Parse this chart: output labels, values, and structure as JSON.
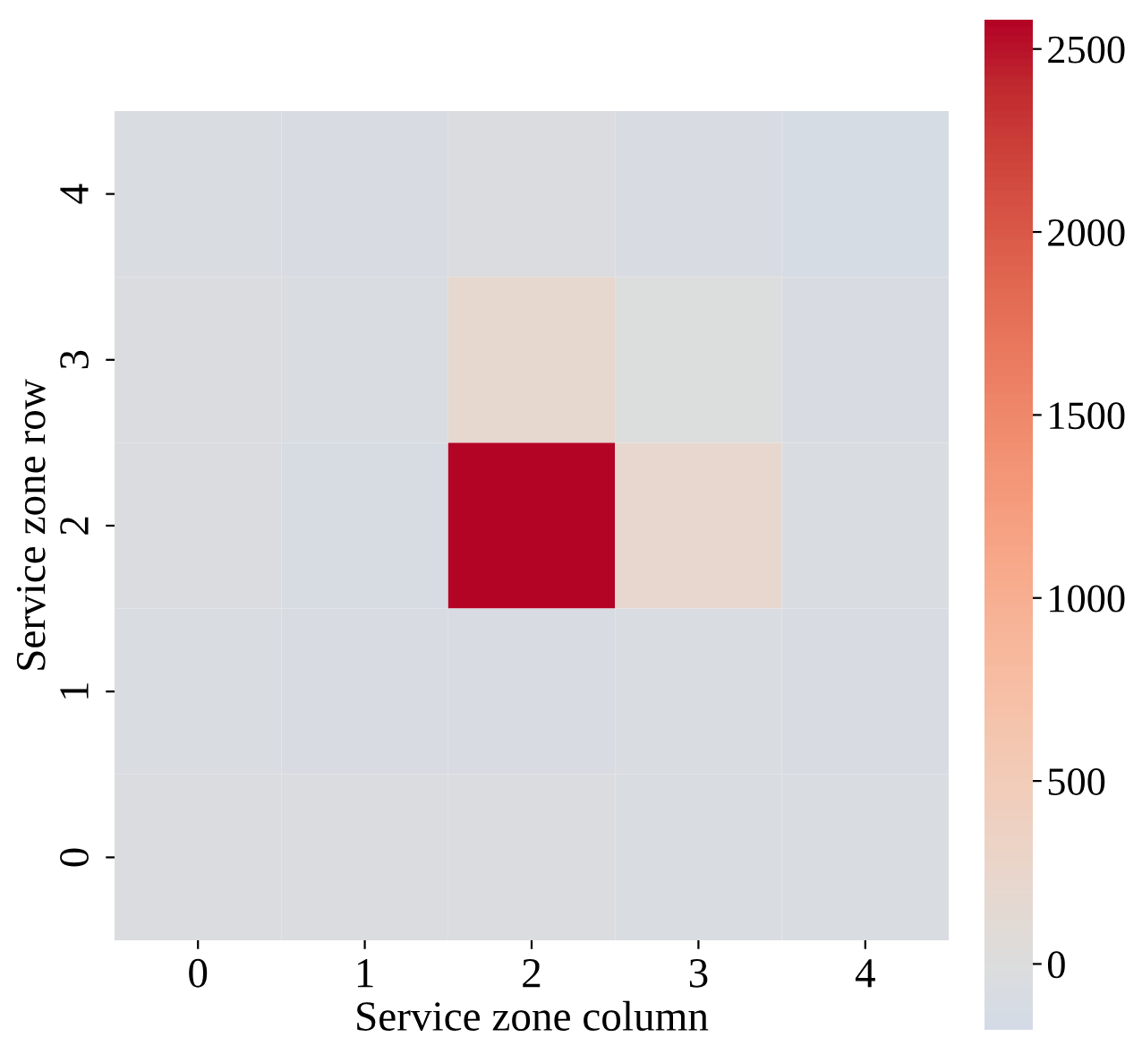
{
  "chart_data": {
    "type": "heatmap",
    "xlabel": "Service zone column",
    "ylabel": "Service zone row",
    "categories": [
      "0",
      "1",
      "2",
      "3",
      "4"
    ],
    "y_categories": [
      "4",
      "3",
      "2",
      "1",
      "0"
    ],
    "cells": [
      [
        -70,
        -80,
        -50,
        -80,
        -130
      ],
      [
        -50,
        -60,
        200,
        0,
        -90
      ],
      [
        -50,
        -100,
        2580,
        220,
        -60
      ],
      [
        -60,
        -90,
        -90,
        -60,
        -80
      ],
      [
        -50,
        -50,
        -50,
        -60,
        -70
      ]
    ],
    "clim": [
      -180,
      2580
    ],
    "cticks": [
      0,
      500,
      1000,
      1500,
      2000,
      2500
    ]
  }
}
